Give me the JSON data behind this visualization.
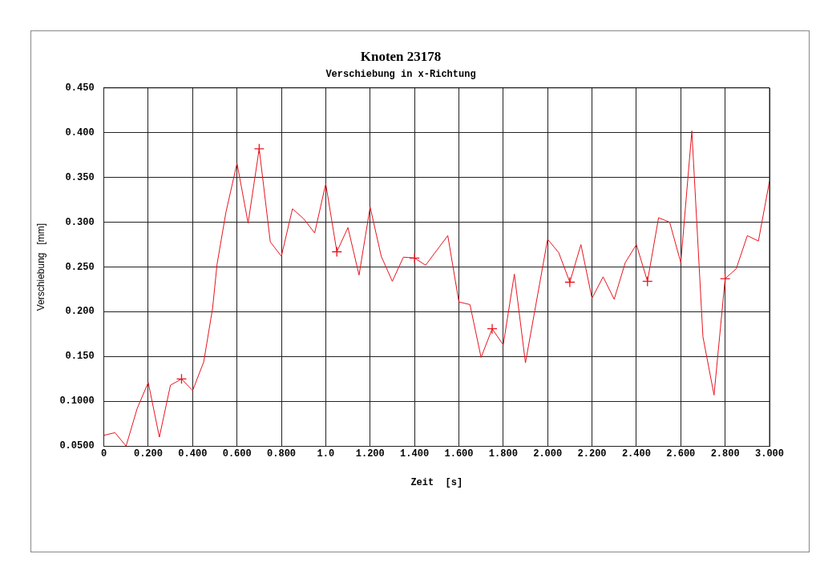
{
  "chart_data": {
    "type": "line",
    "title": "Knoten 23178",
    "subtitle": "Verschiebung in x-Richtung",
    "xlabel": "Zeit  [s]",
    "ylabel": "Verschiebung   [mm]",
    "series": [
      {
        "color": "#e8141e",
        "marker": "none",
        "x": [
          0,
          0.05,
          0.1,
          0.15,
          0.2,
          0.25,
          0.3,
          0.35,
          0.4,
          0.45,
          0.49,
          0.51,
          0.55,
          0.6,
          0.65,
          0.7,
          0.75,
          0.8,
          0.85,
          0.9,
          0.95,
          1.0,
          1.05,
          1.1,
          1.15,
          1.2,
          1.25,
          1.3,
          1.35,
          1.4,
          1.45,
          1.55,
          1.6,
          1.65,
          1.7,
          1.75,
          1.8,
          1.85,
          1.9,
          2.0,
          2.05,
          2.1,
          2.15,
          2.2,
          2.25,
          2.3,
          2.35,
          2.4,
          2.45,
          2.5,
          2.55,
          2.6,
          2.605,
          2.65,
          2.7,
          2.75,
          2.8,
          2.85,
          2.9,
          2.95,
          3.0
        ],
        "values": [
          0.062,
          0.065,
          0.05,
          0.092,
          0.121,
          0.06,
          0.118,
          0.125,
          0.112,
          0.144,
          0.204,
          0.253,
          0.311,
          0.366,
          0.299,
          0.382,
          0.278,
          0.262,
          0.315,
          0.304,
          0.288,
          0.343,
          0.267,
          0.294,
          0.241,
          0.317,
          0.262,
          0.234,
          0.261,
          0.26,
          0.252,
          0.285,
          0.211,
          0.208,
          0.149,
          0.181,
          0.163,
          0.242,
          0.143,
          0.281,
          0.266,
          0.233,
          0.275,
          0.215,
          0.239,
          0.214,
          0.255,
          0.275,
          0.234,
          0.305,
          0.3,
          0.255,
          0.269,
          0.402,
          0.172,
          0.107,
          0.237,
          0.248,
          0.285,
          0.279,
          0.346
        ]
      },
      {
        "type": "scatter",
        "color": "#e8141e",
        "marker": "cross",
        "x": [
          0.35,
          0.7,
          1.05,
          1.4,
          1.75,
          2.1,
          2.45,
          2.8
        ],
        "values": [
          0.125,
          0.382,
          0.267,
          0.26,
          0.181,
          0.233,
          0.234,
          0.237
        ]
      }
    ],
    "xlim": [
      0,
      3.0
    ],
    "ylim": [
      0.05,
      0.45
    ],
    "xticks": [
      0,
      {
        "value": 0.2,
        "label": "0.200"
      },
      {
        "value": 0.4,
        "label": "0.400"
      },
      {
        "value": 0.6,
        "label": "0.600"
      },
      {
        "value": 0.8,
        "label": "0.800"
      },
      {
        "value": 1.0,
        "label": "1.0"
      },
      {
        "value": 1.2,
        "label": "1.200"
      },
      {
        "value": 1.4,
        "label": "1.400"
      },
      {
        "value": 1.6,
        "label": "1.600"
      },
      {
        "value": 1.8,
        "label": "1.800"
      },
      {
        "value": 2.0,
        "label": "2.000"
      },
      {
        "value": 2.2,
        "label": "2.200"
      },
      {
        "value": 2.4,
        "label": "2.400"
      },
      {
        "value": 2.6,
        "label": "2.600"
      },
      {
        "value": 2.8,
        "label": "2.800"
      },
      {
        "value": 3.0,
        "label": "3.000"
      }
    ],
    "yticks": [
      {
        "value": 0.05,
        "label": "0.0500"
      },
      {
        "value": 0.1,
        "label": "0.1000"
      },
      {
        "value": 0.15,
        "label": "0.150"
      },
      {
        "value": 0.2,
        "label": "0.200"
      },
      {
        "value": 0.25,
        "label": "0.250"
      },
      {
        "value": 0.3,
        "label": "0.300"
      },
      {
        "value": 0.35,
        "label": "0.350"
      },
      {
        "value": 0.4,
        "label": "0.400"
      },
      {
        "value": 0.45,
        "label": "0.450"
      }
    ],
    "grid": true,
    "legend": false
  }
}
